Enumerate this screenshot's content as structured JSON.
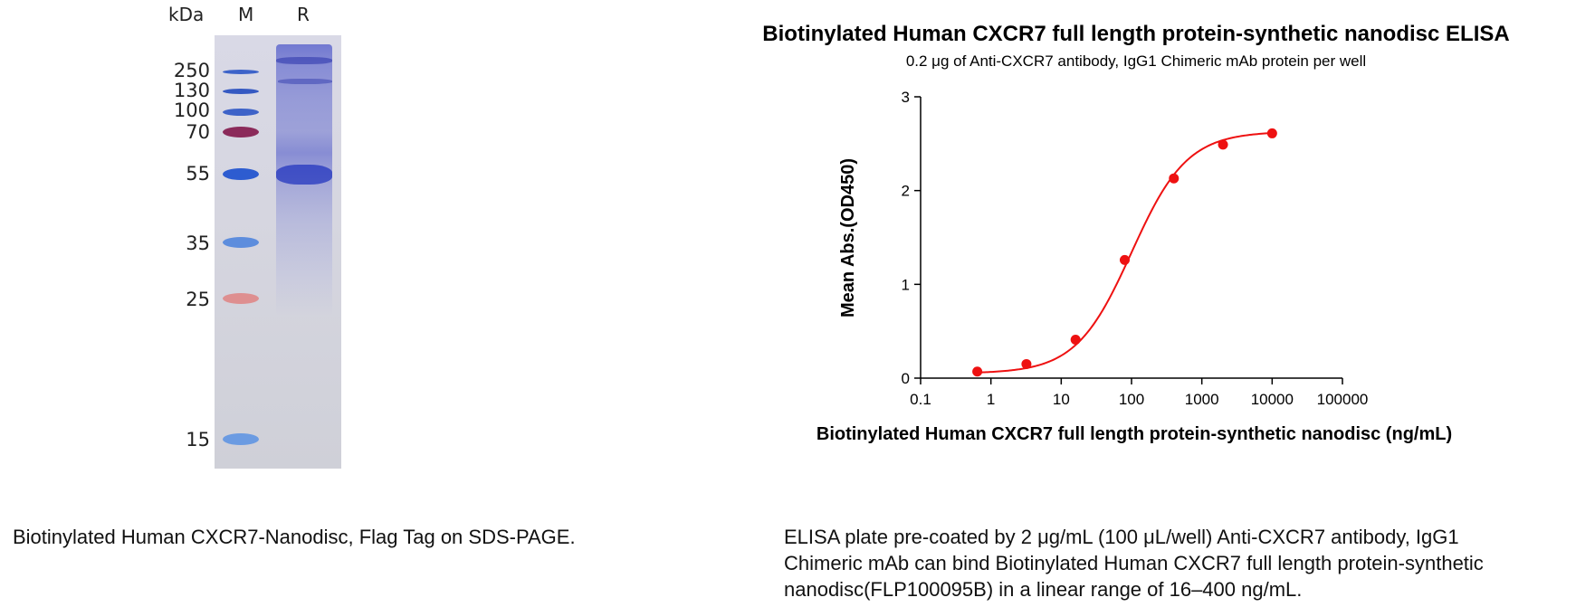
{
  "gel": {
    "unit_label": "kDa",
    "lane_marker_label": "M",
    "lane_sample_label": "R",
    "markers": [
      "250",
      "130",
      "100",
      "70",
      "55",
      "35",
      "25",
      "15"
    ],
    "caption": "Biotinylated Human CXCR7-Nanodisc, Flag Tag on SDS-PAGE."
  },
  "elisa_caption": {
    "line1": "ELISA plate pre-coated by 2 μg/mL (100 μL/well) Anti-CXCR7 antibody, IgG1",
    "line2": "Chimeric mAb can bind Biotinylated Human CXCR7 full length protein-synthetic",
    "line3": "nanodisc(FLP100095B) in a linear range of 16–400 ng/mL."
  },
  "chart_data": {
    "type": "scatter",
    "title": "Biotinylated Human CXCR7 full length protein-synthetic nanodisc ELISA",
    "subtitle": "0.2 μg of Anti-CXCR7 antibody, IgG1 Chimeric mAb protein per well",
    "xlabel": "Biotinylated Human CXCR7 full length protein-synthetic nanodisc (ng/mL)",
    "ylabel": "Mean Abs.(OD450)",
    "x_scale": "log",
    "xlim": [
      0.1,
      100000
    ],
    "ylim": [
      0,
      3
    ],
    "x_ticks": [
      "0.1",
      "1",
      "10",
      "100",
      "1000",
      "10000",
      "100000"
    ],
    "x_tick_values": [
      0.1,
      1,
      10,
      100,
      1000,
      10000,
      100000
    ],
    "y_ticks": [
      "0",
      "1",
      "2",
      "3"
    ],
    "y_tick_values": [
      0,
      1,
      2,
      3
    ],
    "color": "#ee1111",
    "points": [
      {
        "x": 0.64,
        "y": 0.07
      },
      {
        "x": 3.2,
        "y": 0.15
      },
      {
        "x": 16,
        "y": 0.41
      },
      {
        "x": 80,
        "y": 1.26
      },
      {
        "x": 400,
        "y": 2.13
      },
      {
        "x": 2000,
        "y": 2.49
      },
      {
        "x": 10000,
        "y": 2.61
      }
    ],
    "fit": {
      "bottom": 0.05,
      "top": 2.63,
      "ec50": 100,
      "hill": 1.1
    }
  }
}
